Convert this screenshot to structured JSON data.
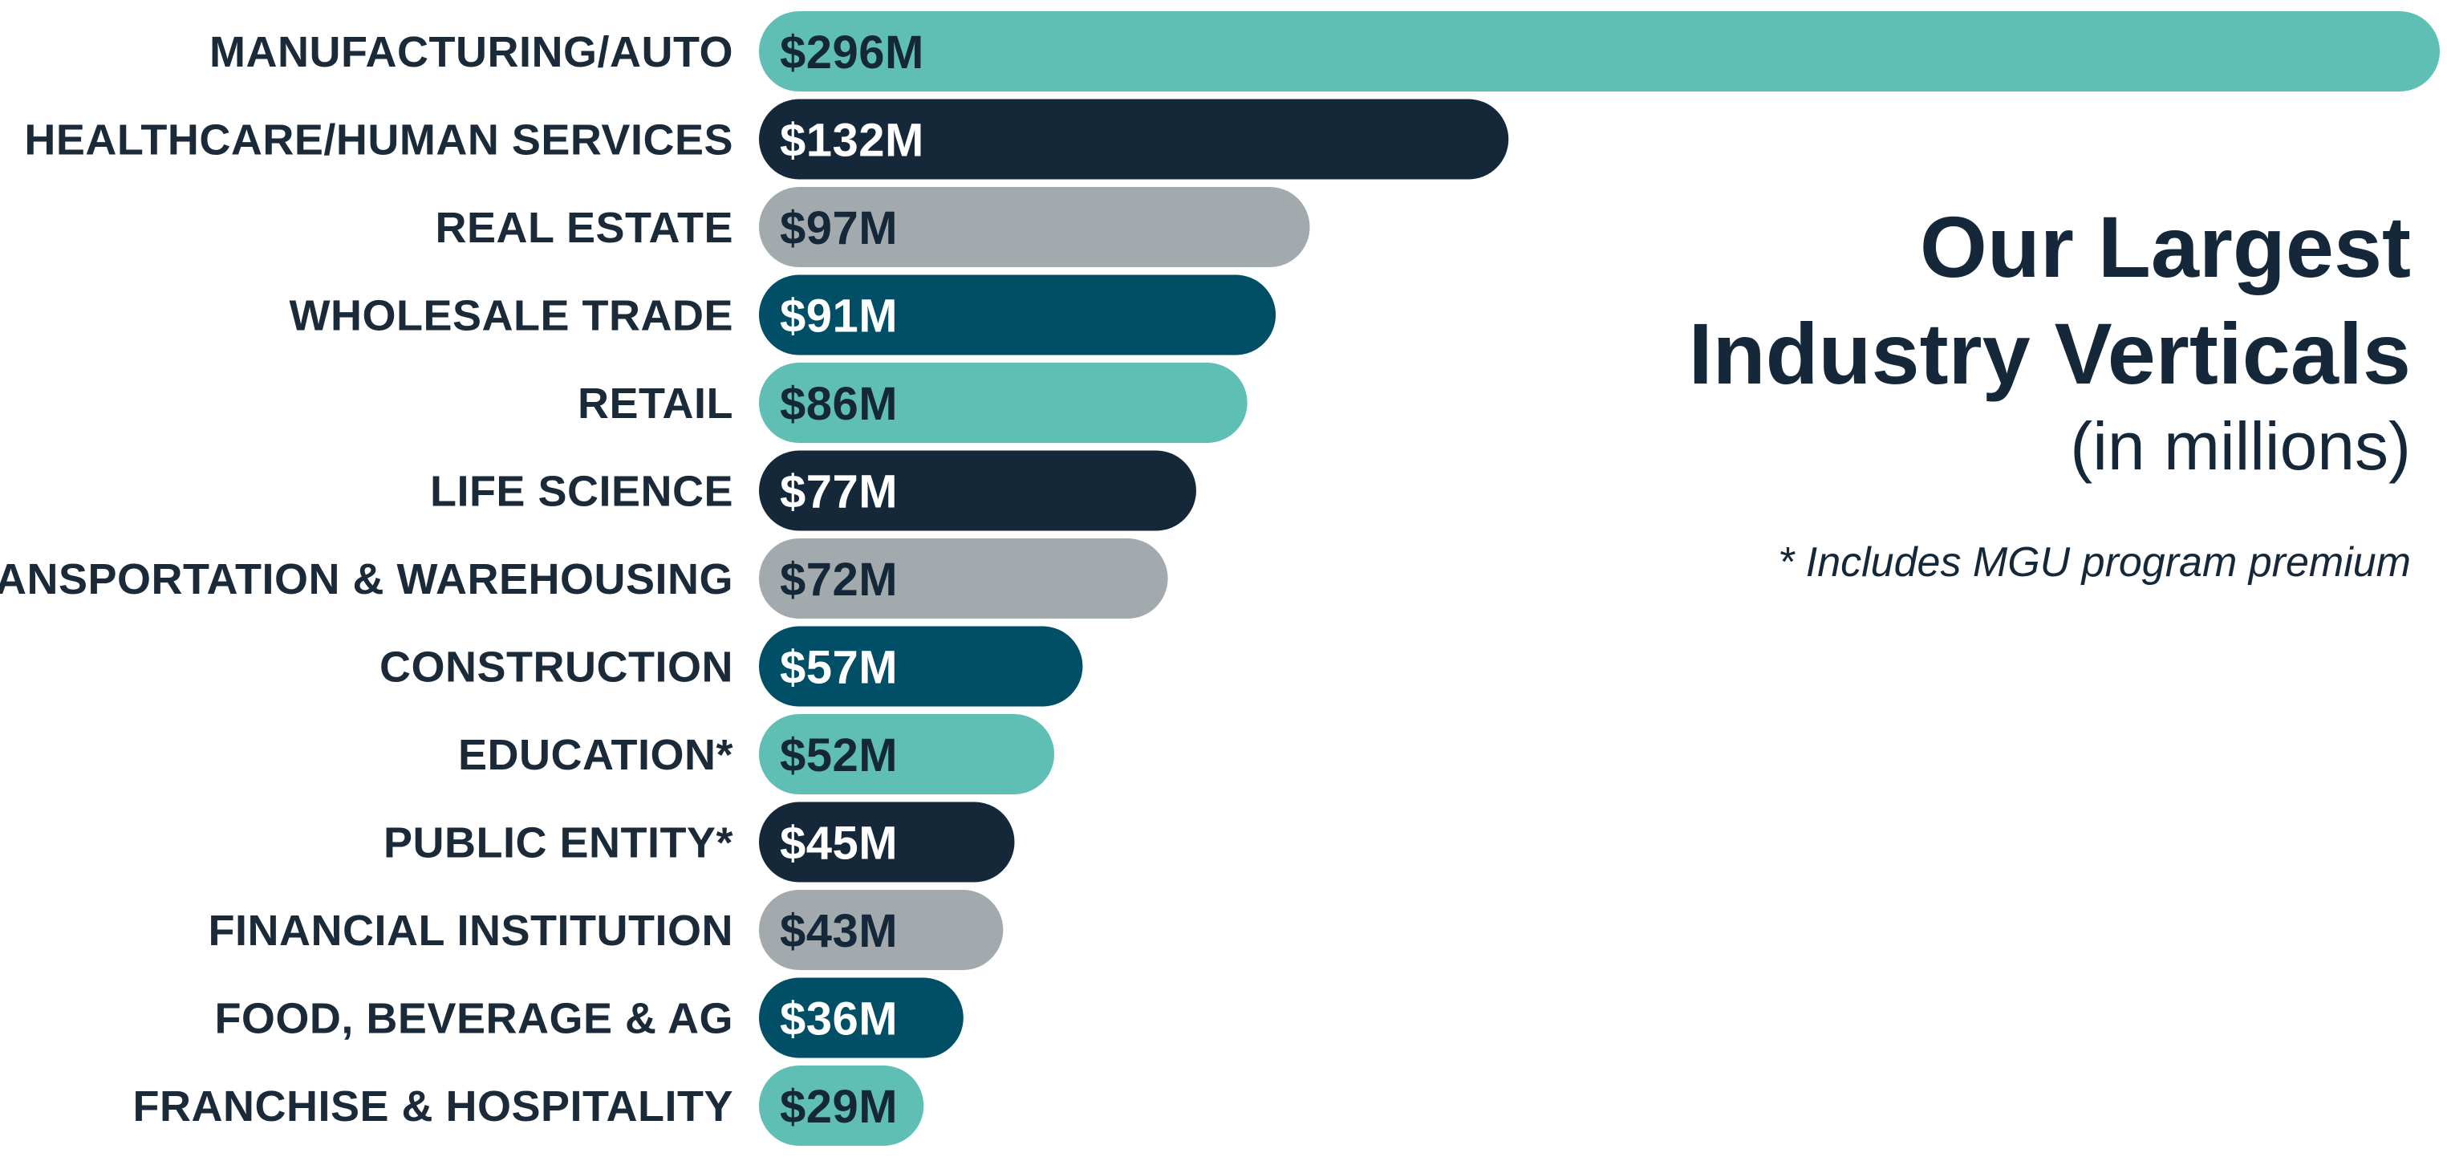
{
  "chart_data": {
    "type": "bar",
    "orientation": "horizontal",
    "title": "Our Largest Industry Verticals",
    "title_lines": [
      "Our Largest",
      "Industry Verticals"
    ],
    "subtitle": "(in millions)",
    "footnote": "* Includes MGU program premium",
    "categories": [
      "MANUFACTURING/AUTO",
      "HEALTHCARE/HUMAN SERVICES",
      "REAL ESTATE",
      "WHOLESALE TRADE",
      "RETAIL",
      "LIFE SCIENCE",
      "TRANSPORTATION & WAREHOUSING",
      "CONSTRUCTION",
      "EDUCATION*",
      "PUBLIC ENTITY*",
      "FINANCIAL INSTITUTION",
      "FOOD, BEVERAGE & AG",
      "FRANCHISE & HOSPITALITY"
    ],
    "values": [
      296,
      132,
      97,
      91,
      86,
      77,
      72,
      57,
      52,
      45,
      43,
      36,
      29
    ],
    "value_labels": [
      "$296M",
      "$132M",
      "$97M",
      "$91M",
      "$86M",
      "$77M",
      "$72M",
      "$57M",
      "$52M",
      "$45M",
      "$43M",
      "$36M",
      "$29M"
    ],
    "unit": "millions USD",
    "grid": false,
    "legend": "none"
  },
  "colors": {
    "teal": "#60bfb4",
    "navy": "#15283a",
    "gray": "#a3aaad",
    "petrol": "#004f66",
    "bar_sequence": [
      "teal",
      "navy",
      "gray",
      "petrol"
    ],
    "label_on_light": "#15283a",
    "label_on_dark": "#ffffff"
  }
}
